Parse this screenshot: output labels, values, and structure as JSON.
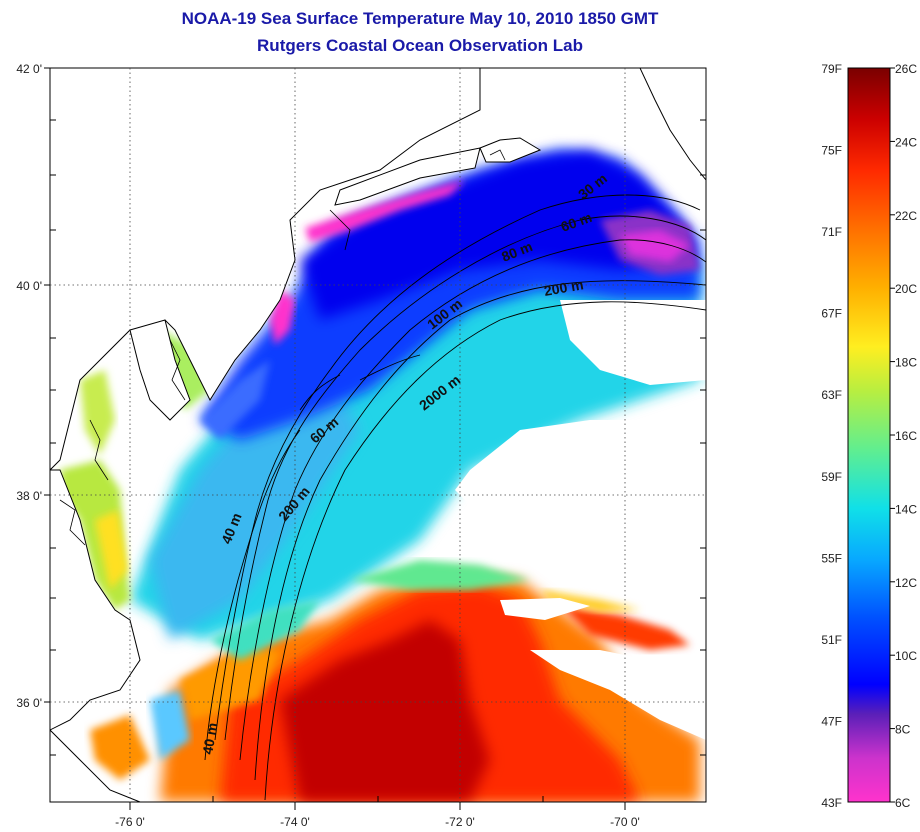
{
  "header": {
    "title": "NOAA-19 Sea Surface Temperature May 10, 2010 1850 GMT",
    "subtitle": "Rutgers Coastal Ocean Observation Lab"
  },
  "axes": {
    "lat_ticks": [
      "42 0'",
      "40 0'",
      "38 0'",
      "36 0'"
    ],
    "lon_ticks": [
      "-76 0'",
      "-74 0'",
      "-72 0'",
      "-70 0'"
    ]
  },
  "contour_labels": [
    "30 m",
    "60 m",
    "80 m",
    "200 m",
    "100 m",
    "2000 m",
    "60 m",
    "200 m",
    "40 m",
    "40 m"
  ],
  "colorbar": {
    "fahrenheit_ticks": [
      "79F",
      "75F",
      "71F",
      "67F",
      "63F",
      "59F",
      "55F",
      "51F",
      "47F",
      "43F"
    ],
    "celsius_ticks": [
      "26C",
      "24C",
      "22C",
      "20C",
      "18C",
      "16C",
      "14C",
      "12C",
      "10C",
      "8C",
      "6C"
    ]
  },
  "colors": {
    "title": "#1a1aa8",
    "land": "#ffffff",
    "cloud": "#ffffff",
    "scale": [
      "#ff33cc",
      "#cc33cc",
      "#7a2aa8",
      "#3a1fb0",
      "#0000ff",
      "#0c40ff",
      "#0aa0ff",
      "#12ddee",
      "#55ee99",
      "#aaee55",
      "#ffee22",
      "#ffbb00",
      "#ff8800",
      "#ff4400",
      "#ee0000",
      "#aa0000",
      "#7a0000"
    ]
  }
}
